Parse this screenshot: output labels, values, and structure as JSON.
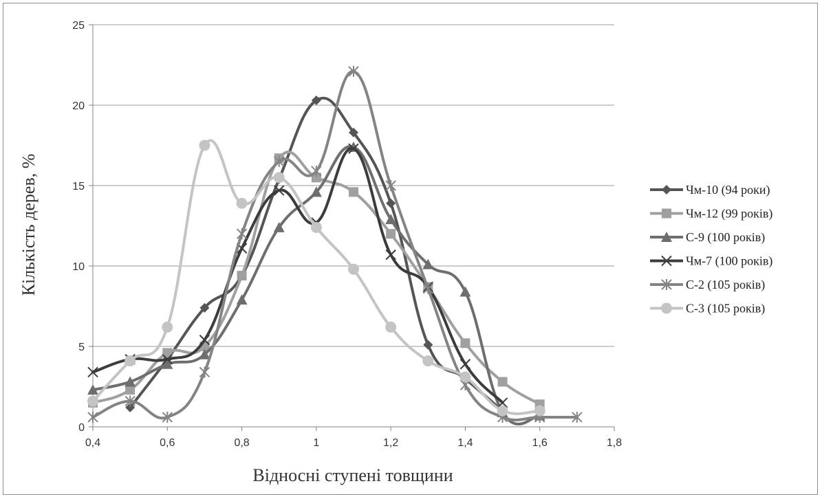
{
  "chart_data": {
    "type": "line",
    "title": "",
    "xlabel": "Відносні ступені товщини",
    "ylabel": "Кількість дерев, %",
    "xlim": [
      0.4,
      1.8
    ],
    "ylim": [
      0,
      25
    ],
    "x_ticks": [
      "0,4",
      "0,6",
      "0,8",
      "1",
      "1,2",
      "1,4",
      "1,6",
      "1,8"
    ],
    "y_ticks": [
      "0",
      "5",
      "10",
      "15",
      "20",
      "25"
    ],
    "grid": "horizontal",
    "legend_position": "right",
    "series": [
      {
        "name": "Чм-10 (94 роки)",
        "color": "#555555",
        "marker": "diamond",
        "x": [
          0.5,
          0.6,
          0.7,
          0.8,
          0.9,
          1.0,
          1.1,
          1.2,
          1.3,
          1.4,
          1.5
        ],
        "y": [
          1.2,
          4.2,
          7.4,
          9.4,
          15.4,
          20.3,
          18.3,
          13.9,
          5.1,
          3.0,
          1.0
        ]
      },
      {
        "name": "Чм-12 (99 років)",
        "color": "#a0a0a0",
        "marker": "square",
        "x": [
          0.4,
          0.5,
          0.6,
          0.7,
          0.8,
          0.9,
          1.0,
          1.1,
          1.2,
          1.3,
          1.4,
          1.5,
          1.6
        ],
        "y": [
          1.5,
          2.3,
          4.6,
          5.0,
          9.4,
          16.7,
          15.5,
          14.6,
          12.0,
          8.7,
          5.2,
          2.8,
          1.4
        ]
      },
      {
        "name": "С-9 (100 років)",
        "color": "#6e6e6e",
        "marker": "triangle",
        "x": [
          0.4,
          0.5,
          0.6,
          0.7,
          0.8,
          0.9,
          1.0,
          1.1,
          1.2,
          1.3,
          1.4,
          1.5,
          1.6
        ],
        "y": [
          2.3,
          2.8,
          3.9,
          4.5,
          7.9,
          12.4,
          14.6,
          17.4,
          12.9,
          10.1,
          8.4,
          0.9,
          0.7
        ]
      },
      {
        "name": "Чм-7 (100  років)",
        "color": "#3c3c3c",
        "marker": "x",
        "x": [
          0.4,
          0.5,
          0.6,
          0.7,
          0.8,
          0.9,
          1.0,
          1.1,
          1.2,
          1.3,
          1.4,
          1.5
        ],
        "y": [
          3.4,
          4.2,
          4.2,
          5.4,
          11.1,
          14.7,
          12.7,
          17.3,
          10.7,
          8.7,
          3.9,
          1.5
        ]
      },
      {
        "name": "С-2 (105 років)",
        "color": "#848484",
        "marker": "asterisk",
        "x": [
          0.4,
          0.5,
          0.6,
          0.7,
          0.8,
          0.9,
          1.0,
          1.1,
          1.2,
          1.3,
          1.4,
          1.5,
          1.6,
          1.7
        ],
        "y": [
          0.6,
          1.6,
          0.6,
          3.4,
          12.0,
          16.5,
          15.9,
          22.1,
          15.0,
          8.6,
          2.6,
          0.6,
          0.6,
          0.6
        ]
      },
      {
        "name": "С-3 (105 років)",
        "color": "#c4c4c4",
        "marker": "circle",
        "x": [
          0.4,
          0.5,
          0.6,
          0.7,
          0.8,
          0.9,
          1.0,
          1.1,
          1.2,
          1.3,
          1.4,
          1.5,
          1.6
        ],
        "y": [
          1.6,
          4.1,
          6.2,
          17.5,
          13.9,
          15.5,
          12.4,
          9.8,
          6.2,
          4.1,
          3.1,
          1.0,
          1.0
        ]
      }
    ]
  }
}
